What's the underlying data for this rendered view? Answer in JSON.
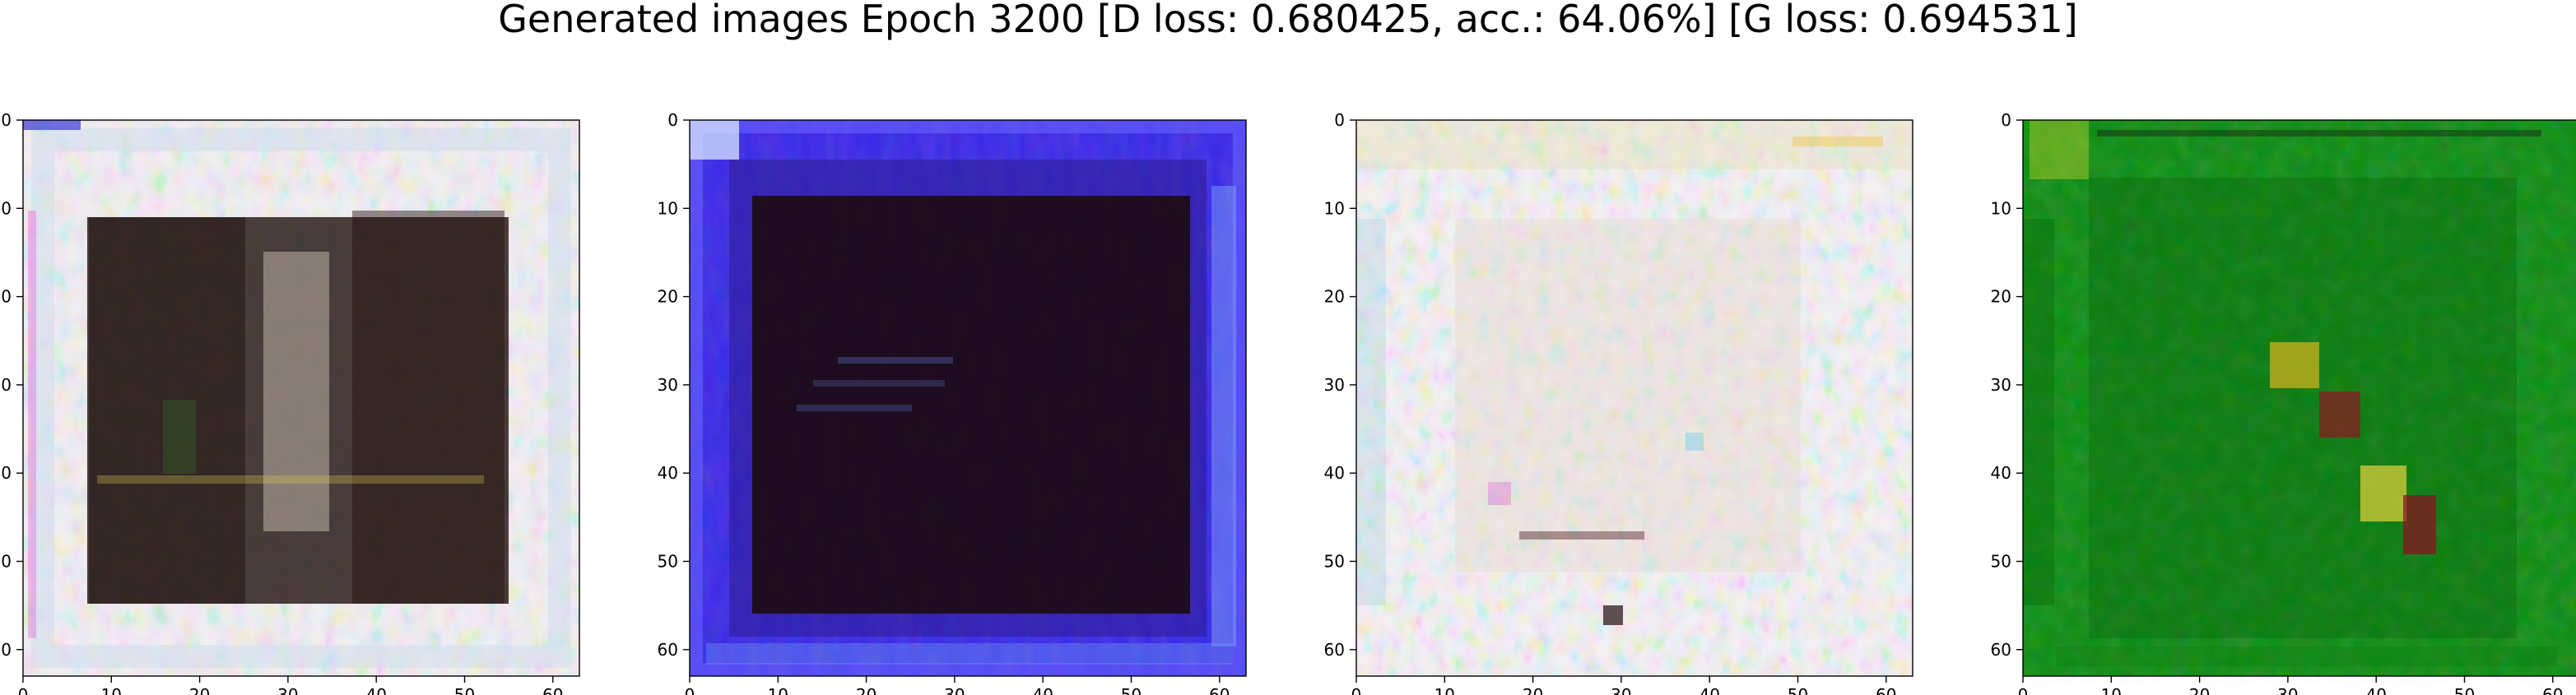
{
  "figure_title": "Generated images Epoch 3200 [D loss: 0.680425, acc.: 64.06%] [G loss: 0.694531]",
  "chart_data": [
    {
      "type": "heatmap",
      "subject": "generated-image-1",
      "xlim": [
        0,
        63
      ],
      "ylim": [
        63,
        0
      ],
      "x_ticks": [
        0,
        10,
        20,
        30,
        40,
        50,
        60
      ],
      "y_ticks": [
        0,
        10,
        20,
        30,
        40,
        50,
        60
      ],
      "dominant_colors": [
        "#f2f0f4",
        "#c7d9ef",
        "#2a1410",
        "#d9c0d6",
        "#f7ecbc"
      ]
    },
    {
      "type": "heatmap",
      "subject": "generated-image-2",
      "xlim": [
        0,
        63
      ],
      "ylim": [
        63,
        0
      ],
      "x_ticks": [
        0,
        10,
        20,
        30,
        40,
        50,
        60
      ],
      "y_ticks": [
        0,
        10,
        20,
        30,
        40,
        50,
        60
      ],
      "dominant_colors": [
        "#3b2be6",
        "#241046",
        "#180808",
        "#5a47f0",
        "#b8c9ff"
      ]
    },
    {
      "type": "heatmap",
      "subject": "generated-image-3",
      "xlim": [
        0,
        63
      ],
      "ylim": [
        63,
        0
      ],
      "x_ticks": [
        0,
        10,
        20,
        30,
        40,
        50,
        60
      ],
      "y_ticks": [
        0,
        10,
        20,
        30,
        40,
        50,
        60
      ],
      "dominant_colors": [
        "#f4f2f4",
        "#d8e7f5",
        "#e6d9c7",
        "#a8d0e6",
        "#e38fd1"
      ]
    },
    {
      "type": "heatmap",
      "subject": "generated-image-4",
      "xlim": [
        0,
        63
      ],
      "ylim": [
        63,
        0
      ],
      "x_ticks": [
        0,
        10,
        20,
        30,
        40,
        50,
        60
      ],
      "y_ticks": [
        0,
        10,
        20,
        30,
        40,
        50,
        60
      ],
      "dominant_colors": [
        "#0a8a10",
        "#0b6d0e",
        "#0e4c12",
        "#d8b41c",
        "#8f0c22"
      ]
    }
  ]
}
